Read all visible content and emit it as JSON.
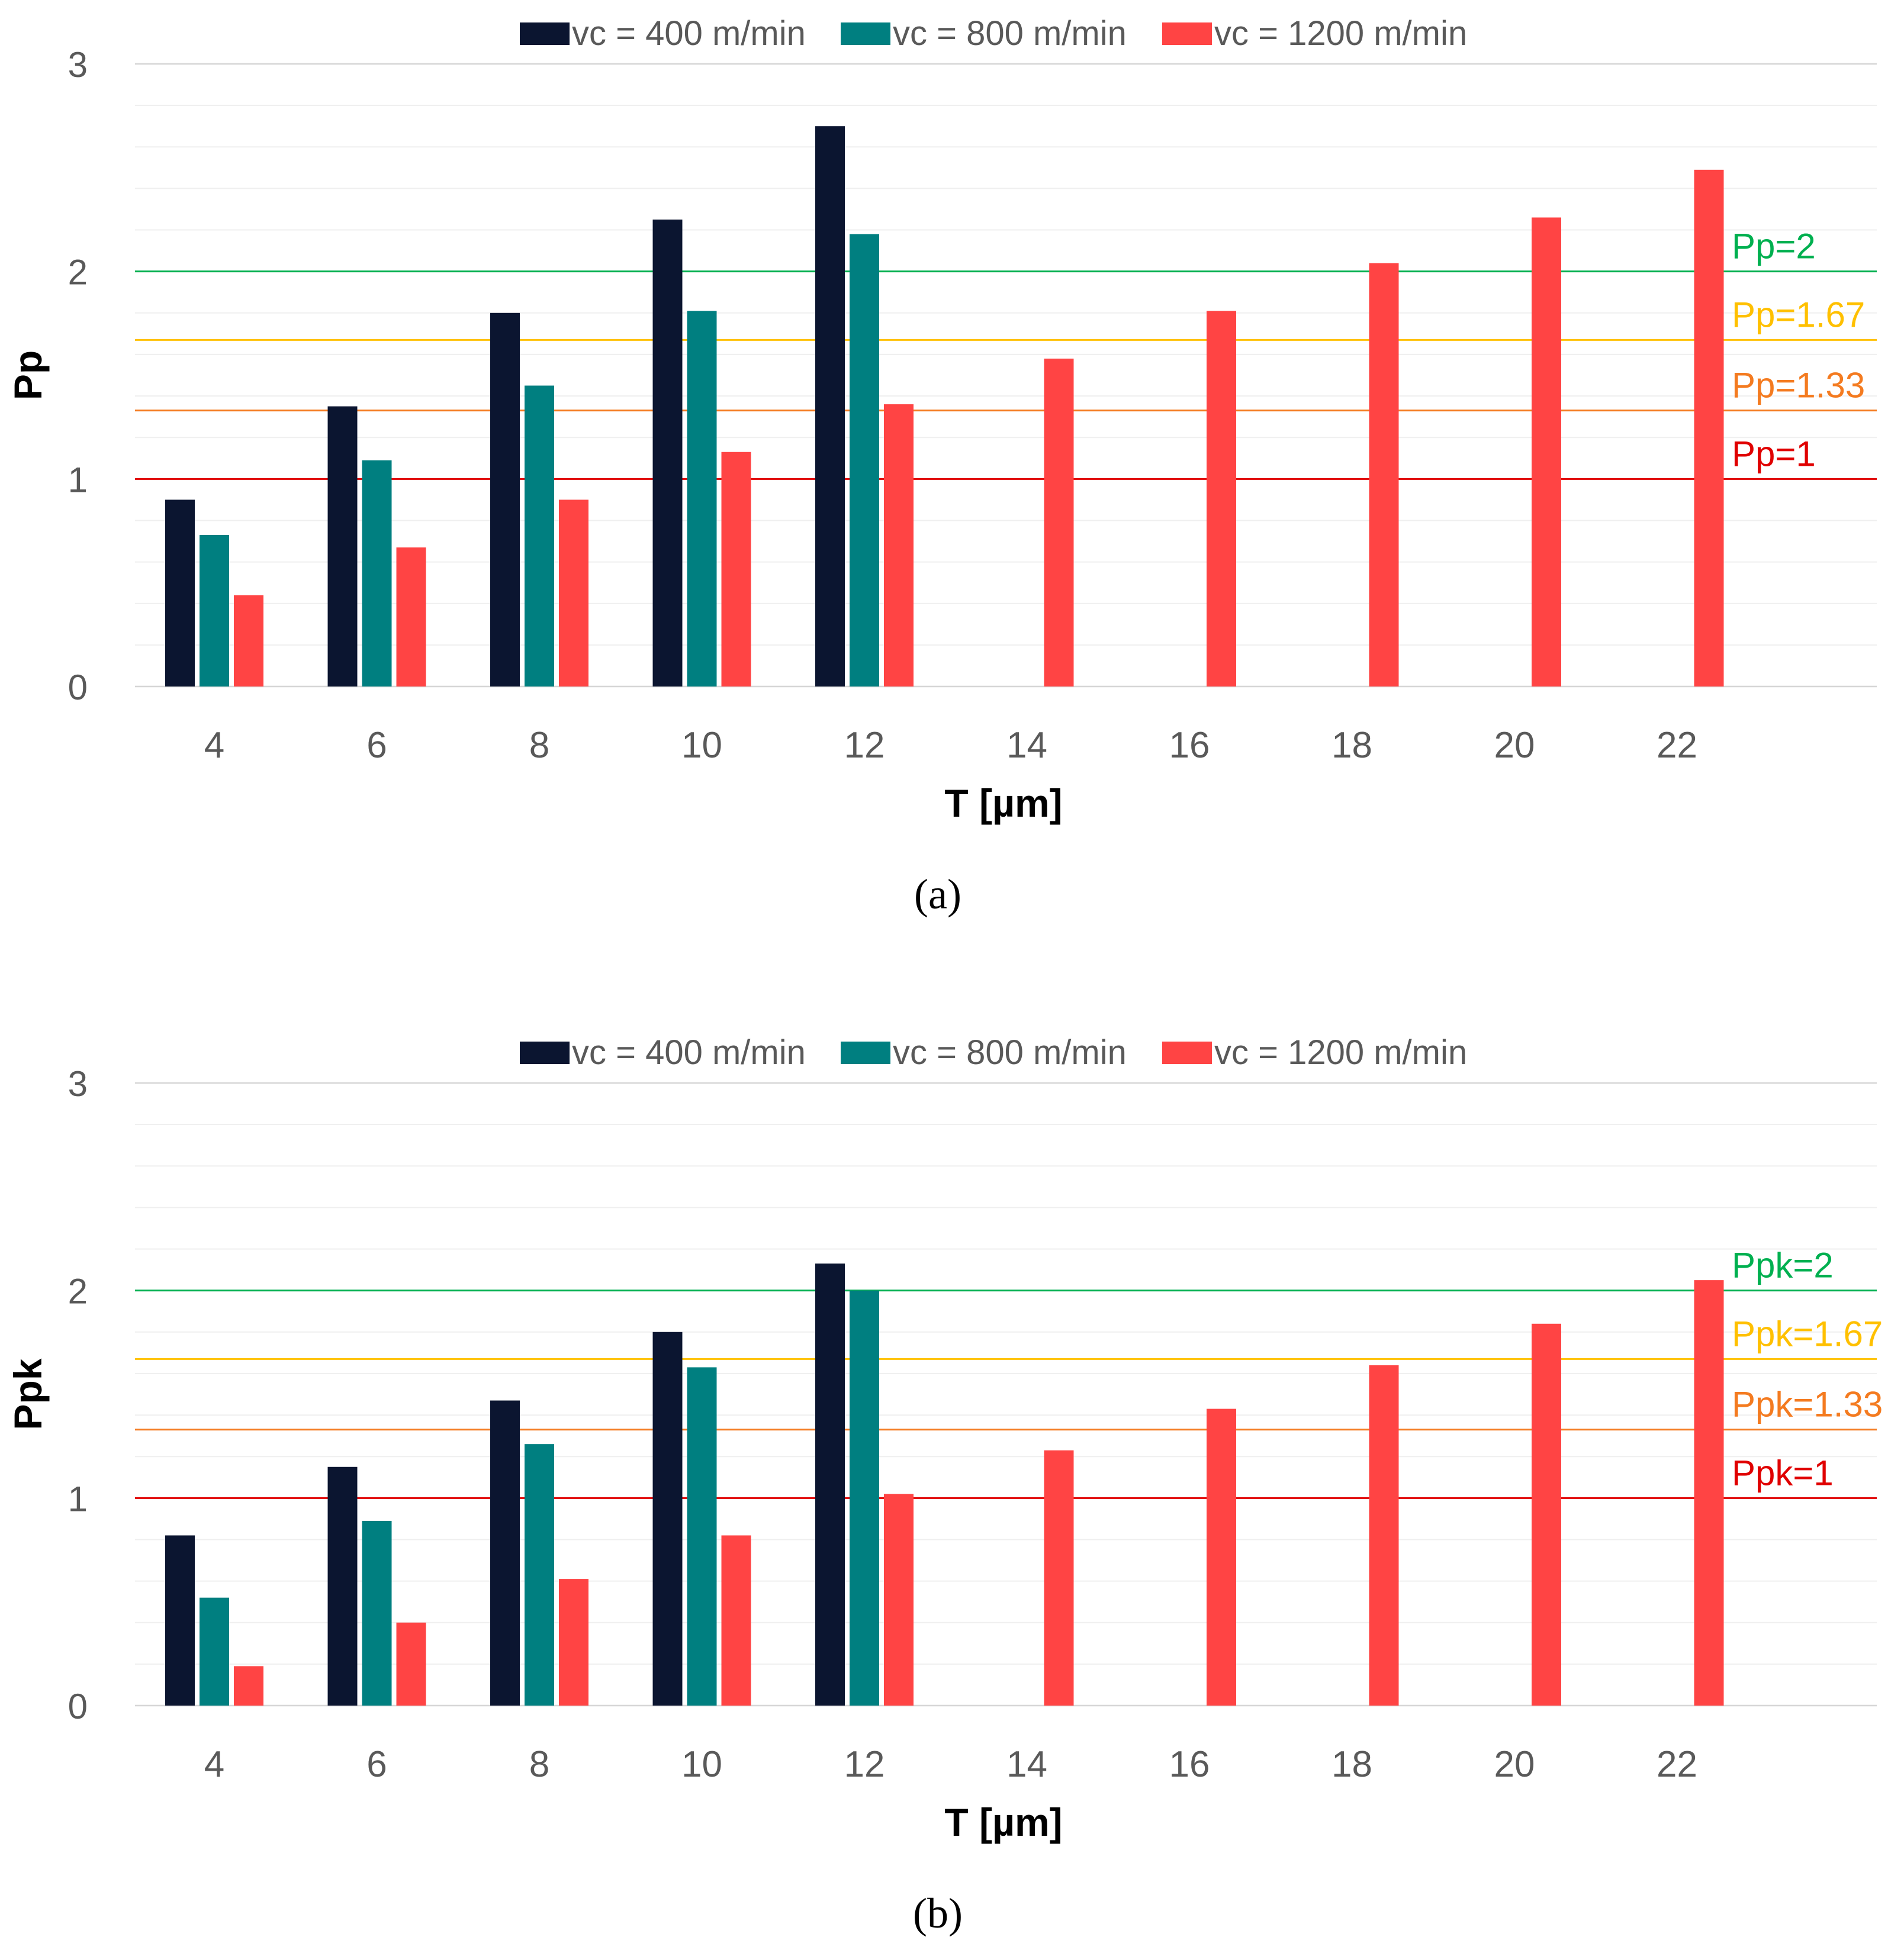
{
  "colors": {
    "series": [
      "#0b1530",
      "#007f80",
      "#ff4444"
    ],
    "grid_major": "#d6d6d6",
    "grid_minor": "#efefef",
    "axis_text": "#595959",
    "ref_lines": [
      "#00b050",
      "#ffc000",
      "#f47b20",
      "#e00000"
    ]
  },
  "chart_data": [
    {
      "type": "bar",
      "panel_label": "a",
      "caption": "(a)",
      "xlabel": "T [µm]",
      "ylabel": "Pp",
      "ylim": [
        0,
        3
      ],
      "yticks": [
        0,
        1,
        2,
        3
      ],
      "minor_step": 0.2,
      "categories": [
        "4",
        "6",
        "8",
        "10",
        "12",
        "14",
        "16",
        "18",
        "20",
        "22"
      ],
      "series": [
        {
          "name": "vc = 400 m/min",
          "values": [
            0.9,
            1.35,
            1.8,
            2.25,
            2.7,
            null,
            null,
            null,
            null,
            null
          ]
        },
        {
          "name": "vc = 800 m/min",
          "values": [
            0.73,
            1.09,
            1.45,
            1.81,
            2.18,
            null,
            null,
            null,
            null,
            null
          ]
        },
        {
          "name": "vc = 1200 m/min",
          "values": [
            0.44,
            0.67,
            0.9,
            1.13,
            1.36,
            1.58,
            1.81,
            2.04,
            2.26,
            2.49
          ]
        }
      ],
      "reference_lines": [
        {
          "value": 2,
          "label": "Pp=2"
        },
        {
          "value": 1.67,
          "label": "Pp=1.67"
        },
        {
          "value": 1.33,
          "label": "Pp=1.33"
        },
        {
          "value": 1,
          "label": "Pp=1"
        }
      ],
      "legend": "top-center",
      "grid": true
    },
    {
      "type": "bar",
      "panel_label": "b",
      "caption": "(b)",
      "xlabel": "T [µm]",
      "ylabel": "Ppk",
      "ylim": [
        0,
        3
      ],
      "yticks": [
        0,
        1,
        2,
        3
      ],
      "minor_step": 0.2,
      "categories": [
        "4",
        "6",
        "8",
        "10",
        "12",
        "14",
        "16",
        "18",
        "20",
        "22"
      ],
      "series": [
        {
          "name": "vc = 400 m/min",
          "values": [
            0.82,
            1.15,
            1.47,
            1.8,
            2.13,
            null,
            null,
            null,
            null,
            null
          ]
        },
        {
          "name": "vc = 800 m/min",
          "values": [
            0.52,
            0.89,
            1.26,
            1.63,
            2.0,
            null,
            null,
            null,
            null,
            null
          ]
        },
        {
          "name": "vc = 1200 m/min",
          "values": [
            0.19,
            0.4,
            0.61,
            0.82,
            1.02,
            1.23,
            1.43,
            1.64,
            1.84,
            2.05
          ]
        }
      ],
      "reference_lines": [
        {
          "value": 2,
          "label": "Ppk=2"
        },
        {
          "value": 1.67,
          "label": "Ppk=1.67"
        },
        {
          "value": 1.33,
          "label": "Ppk=1.33"
        },
        {
          "value": 1,
          "label": "Ppk=1"
        }
      ],
      "legend": "top-center",
      "grid": true
    }
  ]
}
